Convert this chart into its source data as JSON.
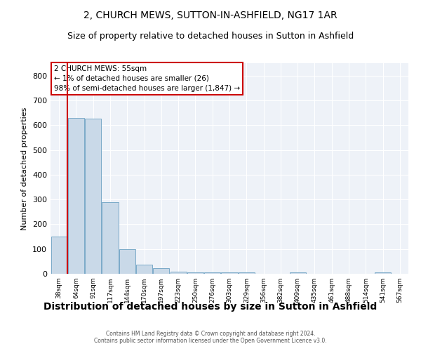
{
  "title": "2, CHURCH MEWS, SUTTON-IN-ASHFIELD, NG17 1AR",
  "subtitle": "Size of property relative to detached houses in Sutton in Ashfield",
  "xlabel": "Distribution of detached houses by size in Sutton in Ashfield",
  "ylabel": "Number of detached properties",
  "categories": [
    "38sqm",
    "64sqm",
    "91sqm",
    "117sqm",
    "144sqm",
    "170sqm",
    "197sqm",
    "223sqm",
    "250sqm",
    "276sqm",
    "303sqm",
    "329sqm",
    "356sqm",
    "382sqm",
    "409sqm",
    "435sqm",
    "461sqm",
    "488sqm",
    "514sqm",
    "541sqm",
    "567sqm"
  ],
  "values": [
    150,
    630,
    625,
    290,
    100,
    38,
    22,
    8,
    5,
    5,
    5,
    5,
    0,
    0,
    5,
    0,
    0,
    0,
    0,
    7,
    0
  ],
  "bar_color": "#c9d9e8",
  "bar_edge_color": "#7aaac8",
  "marker_line_color": "#cc0000",
  "annotation_box_color": "#cc0000",
  "annotation_text": "2 CHURCH MEWS: 55sqm\n← 1% of detached houses are smaller (26)\n98% of semi-detached houses are larger (1,847) →",
  "ylim": [
    0,
    850
  ],
  "yticks": [
    0,
    100,
    200,
    300,
    400,
    500,
    600,
    700,
    800
  ],
  "background_color": "#eef2f8",
  "footer_text": "Contains HM Land Registry data © Crown copyright and database right 2024.\nContains public sector information licensed under the Open Government Licence v3.0.",
  "title_fontsize": 10,
  "subtitle_fontsize": 9,
  "xlabel_fontsize": 10,
  "ylabel_fontsize": 8
}
